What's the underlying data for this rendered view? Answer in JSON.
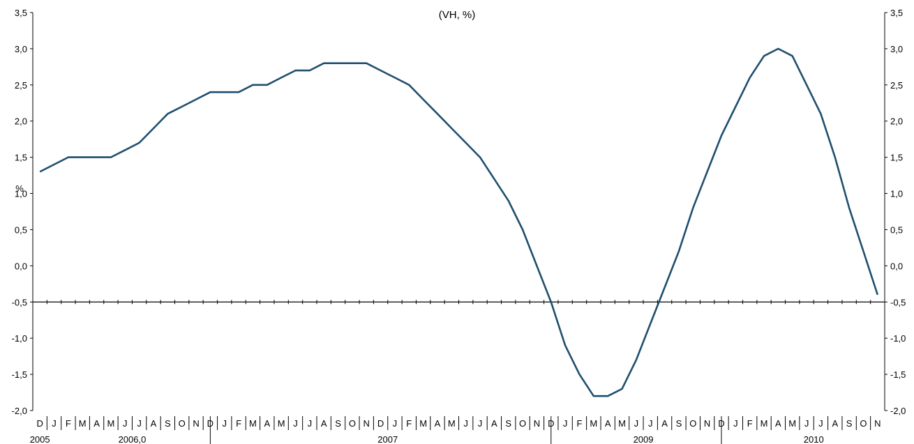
{
  "chart_data": {
    "type": "line",
    "title": "(VH, %)",
    "ylabel": "%",
    "ylim": [
      -2.0,
      3.5
    ],
    "y_ticks": [
      "3,5",
      "3,0",
      "2,5",
      "2,0",
      "1,5",
      "1,0",
      "0,5",
      "0,0",
      "-0,5",
      "-1,0",
      "-1,5",
      "-2,0"
    ],
    "y_tick_values": [
      3.5,
      3.0,
      2.5,
      2.0,
      1.5,
      1.0,
      0.5,
      0.0,
      -0.5,
      -1.0,
      -1.5,
      -2.0
    ],
    "x_axis_crossing": -0.5,
    "grid": false,
    "months": [
      "D",
      "J",
      "F",
      "M",
      "A",
      "M",
      "J",
      "J",
      "A",
      "S",
      "O",
      "N",
      "D",
      "J",
      "F",
      "M",
      "A",
      "M",
      "J",
      "J",
      "A",
      "S",
      "O",
      "N",
      "D",
      "J",
      "F",
      "M",
      "A",
      "M",
      "J",
      "J",
      "A",
      "S",
      "O",
      "N",
      "D",
      "J",
      "F",
      "M",
      "A",
      "M",
      "J",
      "J",
      "A",
      "S",
      "O",
      "N",
      "D",
      "J",
      "F",
      "M",
      "A",
      "M",
      "J",
      "J",
      "A",
      "S",
      "O",
      "N"
    ],
    "year_labels": [
      {
        "label": "2005",
        "month_index": 0
      },
      {
        "label": "2006,0",
        "month_index": 6.5
      },
      {
        "label": "2007",
        "month_index": 24.5
      },
      {
        "label": "2009",
        "month_index": 42.5
      },
      {
        "label": "2010",
        "month_index": 54.5
      }
    ],
    "year_dividers": [
      12.5,
      36.5,
      48.5
    ],
    "series": [
      {
        "color": "#1f4e6e",
        "values": [
          1.3,
          1.4,
          1.5,
          1.5,
          1.5,
          1.5,
          1.6,
          1.7,
          1.9,
          2.1,
          2.2,
          2.3,
          2.4,
          2.4,
          2.4,
          2.5,
          2.5,
          2.6,
          2.7,
          2.7,
          2.8,
          2.8,
          2.8,
          2.8,
          2.7,
          2.6,
          2.5,
          2.3,
          2.1,
          1.9,
          1.7,
          1.5,
          1.2,
          0.9,
          0.5,
          0.0,
          -0.5,
          -1.1,
          -1.5,
          -1.8,
          -1.8,
          -1.7,
          -1.3,
          -0.8,
          -0.3,
          0.2,
          0.8,
          1.3,
          1.8,
          2.2,
          2.6,
          2.9,
          3.0,
          2.9,
          2.5,
          2.1,
          1.5,
          0.8,
          0.2,
          -0.4
        ]
      }
    ]
  }
}
